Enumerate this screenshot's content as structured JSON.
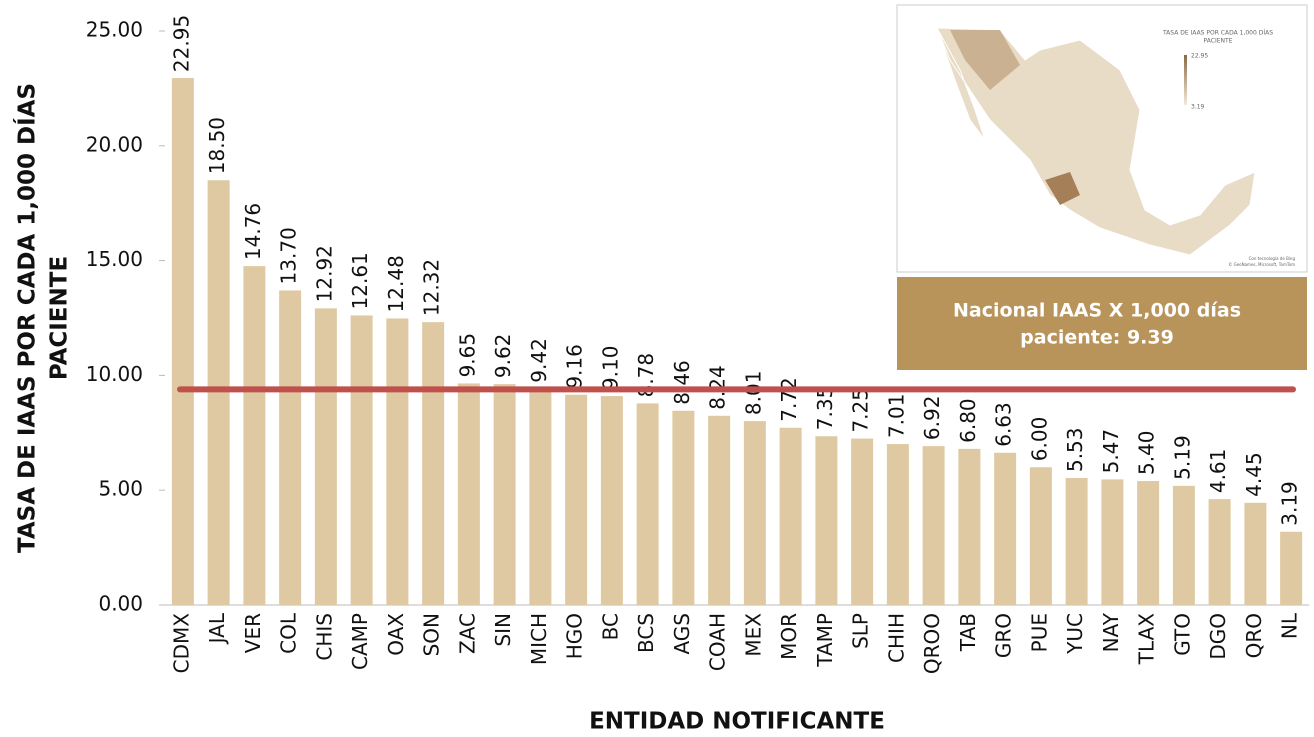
{
  "chart_data": {
    "type": "bar",
    "ylabel": [
      "TASA DE IAAS POR CADA 1,000 DÍAS",
      "PACIENTE"
    ],
    "xlabel": "ENTIDAD NOTIFICANTE",
    "categories": [
      "CDMX",
      "JAL",
      "VER",
      "COL",
      "CHIS",
      "CAMP",
      "OAX",
      "SON",
      "ZAC",
      "SIN",
      "MICH",
      "HGO",
      "BC",
      "BCS",
      "AGS",
      "COAH",
      "MEX",
      "MOR",
      "TAMP",
      "SLP",
      "CHIH",
      "QROO",
      "TAB",
      "GRO",
      "PUE",
      "YUC",
      "NAY",
      "TLAX",
      "GTO",
      "DGO",
      "QRO",
      "NL"
    ],
    "values": [
      22.95,
      18.5,
      14.76,
      13.7,
      12.92,
      12.61,
      12.48,
      12.32,
      9.65,
      9.62,
      9.42,
      9.16,
      9.1,
      8.78,
      8.46,
      8.24,
      8.01,
      7.72,
      7.35,
      7.25,
      7.01,
      6.92,
      6.8,
      6.63,
      6.0,
      5.53,
      5.47,
      5.4,
      5.19,
      4.61,
      4.45,
      3.19
    ],
    "value_labels": [
      "22.95",
      "18.50",
      "14.76",
      "13.70",
      "12.92",
      "12.61",
      "12.48",
      "12.32",
      "9.65",
      "9.62",
      "9.42",
      "9.16",
      "9.10",
      "8.78",
      "8.46",
      "8.24",
      "8.01",
      "7.72",
      "7.35",
      "7.25",
      "7.01",
      "6.92",
      "6.80",
      "6.63",
      "6.00",
      "5.53",
      "5.47",
      "5.40",
      "5.19",
      "4.61",
      "4.45",
      "3.19"
    ],
    "color": "#dfc9a2",
    "ylim": [
      0,
      25
    ],
    "yticks": [
      {
        "value": 0,
        "label": "0.00"
      },
      {
        "value": 5,
        "label": "5.00"
      },
      {
        "value": 10,
        "label": "10.00"
      },
      {
        "value": 15,
        "label": "15.00"
      },
      {
        "value": 20,
        "label": "20.00"
      },
      {
        "value": 25,
        "label": "25.00"
      }
    ],
    "reference_value": 9.39,
    "reference_color": "#bf504c",
    "annotation": [
      "Nacional IAAS X 1,000 días",
      "paciente: 9.39"
    ],
    "annotation_color": "#b8935a",
    "inset": {
      "title": [
        "TASA DE IAAS POR CADA 1,000 DÍAS",
        "PACIENTE"
      ],
      "legend_labels": [
        "22.95",
        "3.19"
      ],
      "credits": [
        "Con tecnología de Bing",
        "© GeoNames, Microsoft, TomTom"
      ]
    }
  }
}
